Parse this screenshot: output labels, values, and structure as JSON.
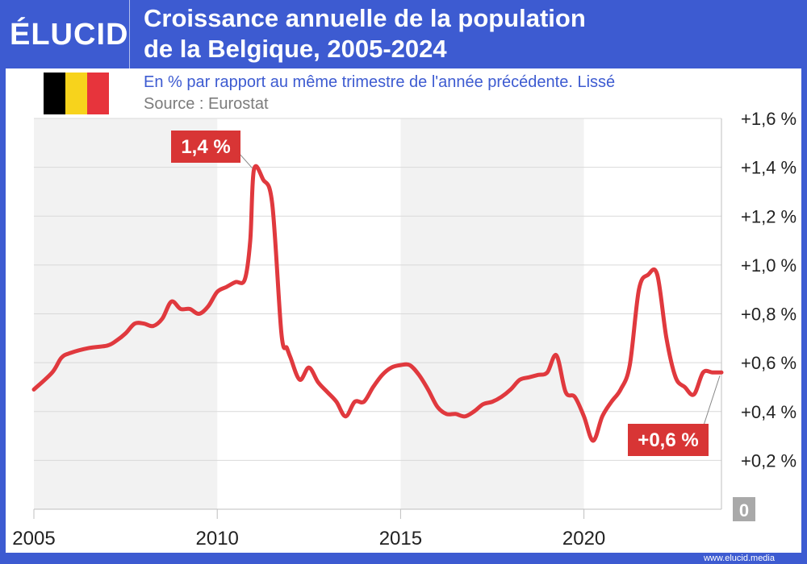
{
  "header": {
    "logo": "ÉLUCID",
    "title": "Croissance annuelle de la population\nde la Belgique, 2005-2024"
  },
  "subtitle": "En % par rapport au même trimestre de l'année précédente. Lissé",
  "source": "Source : Eurostat",
  "footer_url": "www.elucid.media",
  "colors": {
    "brand": "#3d5bd1",
    "line": "#e0393e",
    "label_bg": "#d83535",
    "shade": "#f2f2f2"
  },
  "flag_colors": [
    "#000000",
    "#f7d31c",
    "#e7343c"
  ],
  "chart_data": {
    "type": "line",
    "title": "Croissance annuelle de la population de la Belgique, 2005-2024",
    "xlabel": "",
    "ylabel": "",
    "xlim": [
      2005,
      2023.75
    ],
    "ylim": [
      0,
      1.6
    ],
    "x_ticks": [
      2005,
      2010,
      2015,
      2020
    ],
    "x_tick_labels": [
      "2005",
      "2010",
      "2015",
      "2020"
    ],
    "y_ticks": [
      0.2,
      0.4,
      0.6,
      0.8,
      1.0,
      1.2,
      1.4,
      1.6
    ],
    "y_tick_labels": [
      "+0,2 %",
      "+0,4 %",
      "+0,6 %",
      "+0,8 %",
      "+1,0 %",
      "+1,2 %",
      "+1,4 %",
      "+1,6 %"
    ],
    "zero_label": "0",
    "shaded_periods": [
      [
        2005,
        2010
      ],
      [
        2015,
        2020
      ]
    ],
    "series": [
      {
        "name": "Croissance annuelle de la population",
        "x": [
          2005,
          2005.5,
          2005.75,
          2006,
          2006.5,
          2007,
          2007.25,
          2007.5,
          2007.75,
          2008,
          2008.25,
          2008.5,
          2008.75,
          2009,
          2009.25,
          2009.5,
          2009.75,
          2010,
          2010.25,
          2010.5,
          2010.75,
          2010.9,
          2011,
          2011.25,
          2011.5,
          2011.75,
          2011.9,
          2012,
          2012.25,
          2012.5,
          2012.75,
          2013,
          2013.25,
          2013.5,
          2013.75,
          2014,
          2014.25,
          2014.5,
          2014.75,
          2015,
          2015.25,
          2015.5,
          2015.75,
          2016,
          2016.25,
          2016.5,
          2016.75,
          2017,
          2017.25,
          2017.5,
          2017.75,
          2018,
          2018.25,
          2018.5,
          2018.75,
          2019,
          2019.25,
          2019.5,
          2019.75,
          2020,
          2020.25,
          2020.5,
          2020.75,
          2021,
          2021.25,
          2021.5,
          2021.75,
          2022,
          2022.25,
          2022.5,
          2022.75,
          2023,
          2023.25,
          2023.5,
          2023.75
        ],
        "values": [
          0.49,
          0.56,
          0.62,
          0.64,
          0.66,
          0.67,
          0.69,
          0.72,
          0.76,
          0.76,
          0.75,
          0.78,
          0.85,
          0.82,
          0.82,
          0.8,
          0.83,
          0.89,
          0.91,
          0.93,
          0.94,
          1.1,
          1.39,
          1.35,
          1.25,
          0.72,
          0.66,
          0.62,
          0.53,
          0.58,
          0.52,
          0.48,
          0.44,
          0.38,
          0.44,
          0.44,
          0.5,
          0.55,
          0.58,
          0.59,
          0.59,
          0.55,
          0.49,
          0.42,
          0.39,
          0.39,
          0.38,
          0.4,
          0.43,
          0.44,
          0.46,
          0.49,
          0.53,
          0.54,
          0.55,
          0.56,
          0.63,
          0.48,
          0.46,
          0.38,
          0.28,
          0.38,
          0.44,
          0.49,
          0.59,
          0.9,
          0.96,
          0.96,
          0.7,
          0.54,
          0.5,
          0.47,
          0.56,
          0.56,
          0.56
        ]
      }
    ],
    "annotations": [
      {
        "text": "1,4 %",
        "x": 2011.0,
        "y": 1.39
      },
      {
        "text": "+0,6 %",
        "x": 2023.75,
        "y": 0.56
      }
    ]
  }
}
